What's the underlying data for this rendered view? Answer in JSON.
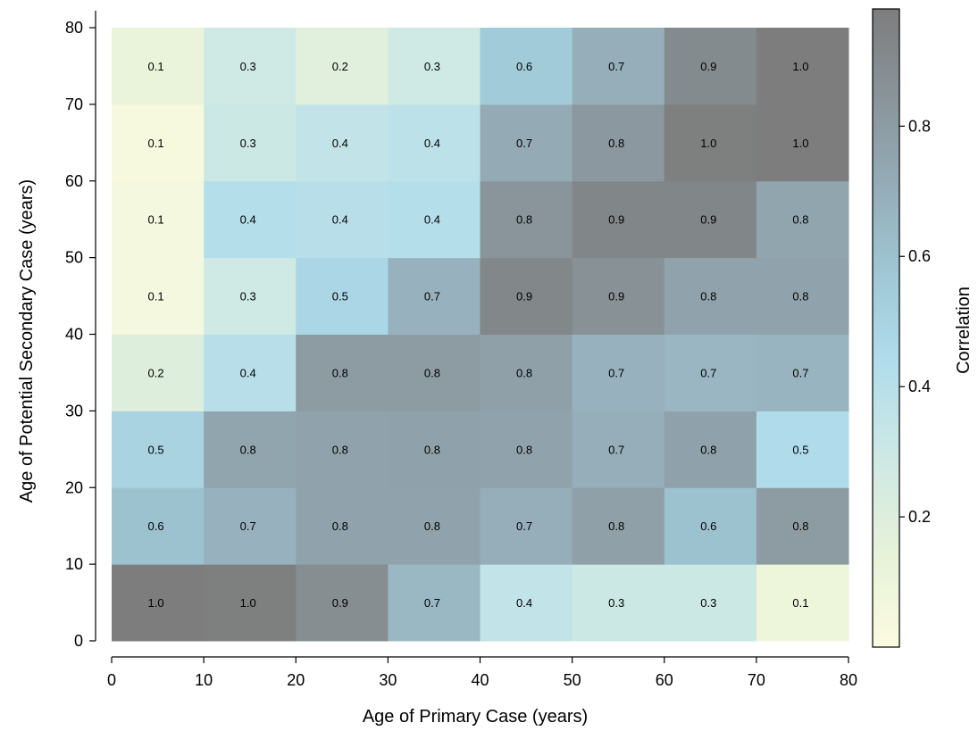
{
  "chart_data": {
    "type": "heatmap",
    "title": "",
    "xlabel": "Age of Primary Case (years)",
    "ylabel": "Age of Potential Secondary Case (years)",
    "x_bins": [
      [
        0,
        10
      ],
      [
        10,
        20
      ],
      [
        20,
        30
      ],
      [
        30,
        40
      ],
      [
        40,
        50
      ],
      [
        50,
        60
      ],
      [
        60,
        70
      ],
      [
        70,
        80
      ]
    ],
    "y_bins": [
      [
        0,
        10
      ],
      [
        10,
        20
      ],
      [
        20,
        30
      ],
      [
        30,
        40
      ],
      [
        40,
        50
      ],
      [
        50,
        60
      ],
      [
        60,
        70
      ],
      [
        70,
        80
      ]
    ],
    "values_bottom_to_top": [
      [
        1.0,
        1.0,
        0.9,
        0.7,
        0.4,
        0.3,
        0.3,
        0.1
      ],
      [
        0.6,
        0.7,
        0.8,
        0.8,
        0.7,
        0.8,
        0.6,
        0.8
      ],
      [
        0.5,
        0.8,
        0.8,
        0.8,
        0.8,
        0.7,
        0.8,
        0.5
      ],
      [
        0.2,
        0.4,
        0.8,
        0.8,
        0.8,
        0.7,
        0.7,
        0.7
      ],
      [
        0.1,
        0.3,
        0.5,
        0.7,
        0.9,
        0.9,
        0.8,
        0.8
      ],
      [
        0.1,
        0.4,
        0.4,
        0.4,
        0.8,
        0.9,
        0.9,
        0.8
      ],
      [
        0.1,
        0.3,
        0.4,
        0.4,
        0.7,
        0.8,
        1.0,
        1.0
      ],
      [
        0.1,
        0.3,
        0.2,
        0.3,
        0.6,
        0.7,
        0.9,
        1.0
      ]
    ],
    "shading_values_bottom_to_top": [
      [
        0.98,
        0.97,
        0.88,
        0.65,
        0.35,
        0.3,
        0.3,
        0.1
      ],
      [
        0.6,
        0.68,
        0.76,
        0.76,
        0.7,
        0.78,
        0.6,
        0.8
      ],
      [
        0.5,
        0.75,
        0.76,
        0.77,
        0.76,
        0.7,
        0.77,
        0.45
      ],
      [
        0.2,
        0.4,
        0.8,
        0.8,
        0.78,
        0.68,
        0.66,
        0.67
      ],
      [
        0.05,
        0.28,
        0.48,
        0.68,
        0.92,
        0.86,
        0.76,
        0.76
      ],
      [
        0.05,
        0.42,
        0.4,
        0.42,
        0.84,
        0.93,
        0.93,
        0.75
      ],
      [
        0.03,
        0.3,
        0.35,
        0.38,
        0.72,
        0.82,
        0.97,
        0.98
      ],
      [
        0.12,
        0.28,
        0.18,
        0.28,
        0.55,
        0.7,
        0.9,
        0.98
      ]
    ],
    "xlim": [
      0,
      80
    ],
    "ylim": [
      0,
      80
    ],
    "x_ticks": [
      0,
      10,
      20,
      30,
      40,
      50,
      60,
      70,
      80
    ],
    "y_ticks": [
      0,
      10,
      20,
      30,
      40,
      50,
      60,
      70,
      80
    ],
    "colorbar": {
      "label": "Correlation",
      "ticks": [
        0.2,
        0.4,
        0.6,
        0.8
      ],
      "range": [
        0.0,
        0.98
      ],
      "colormap_stops": [
        [
          0.0,
          "#fbfbe0"
        ],
        [
          0.15,
          "#e6f2d9"
        ],
        [
          0.3,
          "#cde8e5"
        ],
        [
          0.45,
          "#b0dceb"
        ],
        [
          0.58,
          "#a0c8d6"
        ],
        [
          0.72,
          "#95adb8"
        ],
        [
          0.85,
          "#8a969c"
        ],
        [
          1.0,
          "#7d7d7d"
        ]
      ]
    }
  }
}
